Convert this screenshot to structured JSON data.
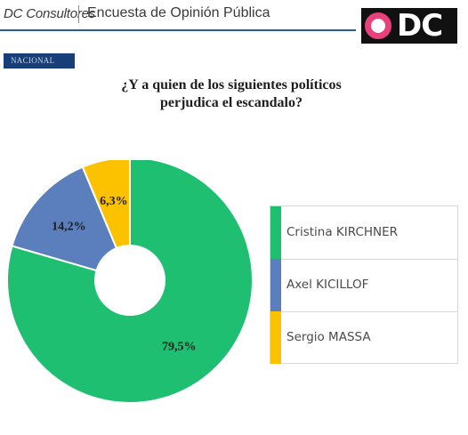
{
  "header": {
    "brand": "DC Consultores",
    "survey_title": "Encuesta de Opinión Pública",
    "logo_text": "DC"
  },
  "tag": "NACIONAL",
  "chart_data": {
    "type": "pie",
    "title": "¿Y a quien de los siguientes políticos perjudica el escandalo?",
    "title_lines": [
      "¿Y a quien de los siguientes políticos",
      "perjudica el escandalo?"
    ],
    "categories": [
      "Cristina KIRCHNER",
      "Axel KICILLOF",
      "Sergio MASSA"
    ],
    "values": [
      79.5,
      14.2,
      6.3
    ],
    "value_labels": [
      "79,5%",
      "14,2%",
      "6,3%"
    ],
    "colors": [
      "#1fbf72",
      "#5b7fbc",
      "#fcc200"
    ],
    "donut": true,
    "legend_position": "right"
  },
  "colors": {
    "header_rule": "#2a5d8a",
    "tag_bg": "#183e78",
    "logo_accent": "#e8417c"
  }
}
